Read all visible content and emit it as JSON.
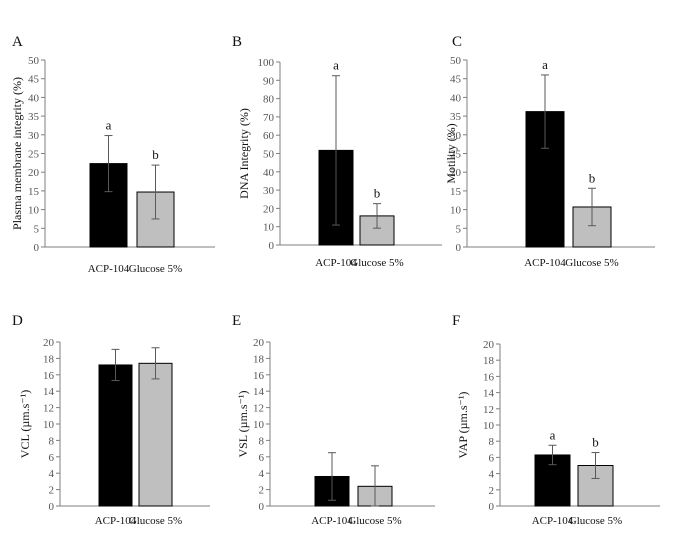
{
  "colors": {
    "acp": "#000000",
    "glucose": "#bfbfbf",
    "axis": "#7f7f7f",
    "error": "#595959"
  },
  "chart_data": [
    {
      "panel": "A",
      "type": "bar",
      "categories": [
        "ACP-104",
        "Glucose 5%"
      ],
      "values": [
        22.3,
        14.7
      ],
      "errors": [
        7.5,
        7.2
      ],
      "sig": [
        "a",
        "b"
      ],
      "ylabel": "Plasma membrane integrity (%)",
      "ylim": [
        0,
        50
      ],
      "ystep": 5,
      "yticks": [
        "0",
        "5",
        "10",
        "15",
        "20",
        "25",
        "30",
        "35",
        "40",
        "45",
        "50"
      ]
    },
    {
      "panel": "B",
      "type": "bar",
      "categories": [
        "ACP-104",
        "Glucose 5%"
      ],
      "values": [
        51.7,
        15.9
      ],
      "errors": [
        40.8,
        6.7
      ],
      "sig": [
        "a",
        "b"
      ],
      "ylabel": "DNA Integrity (%)",
      "ylim": [
        0,
        100
      ],
      "ystep": 10,
      "yticks": [
        "0",
        "10",
        "20",
        "30",
        "40",
        "50",
        "60",
        "70",
        "80",
        "90",
        "100"
      ]
    },
    {
      "panel": "C",
      "type": "bar",
      "categories": [
        "ACP-104",
        "Glucose 5%"
      ],
      "values": [
        36.2,
        10.7
      ],
      "errors": [
        9.8,
        5.0
      ],
      "sig": [
        "a",
        "b"
      ],
      "ylabel": "Motility (%)",
      "ylim": [
        0,
        50
      ],
      "ystep": 5,
      "yticks": [
        "0",
        "5",
        "10",
        "15",
        "20",
        "25",
        "30",
        "35",
        "40",
        "45",
        "50"
      ]
    },
    {
      "panel": "D",
      "type": "bar",
      "categories": [
        "ACP-104",
        "Glucose 5%"
      ],
      "values": [
        17.2,
        17.4
      ],
      "errors": [
        1.9,
        1.9
      ],
      "sig": [
        "",
        ""
      ],
      "ylabel": "VCL (µm.s⁻¹)",
      "ylim": [
        0,
        20
      ],
      "ystep": 2,
      "yticks": [
        "0",
        "2",
        "4",
        "6",
        "8",
        "10",
        "12",
        "14",
        "16",
        "18",
        "20"
      ]
    },
    {
      "panel": "E",
      "type": "bar",
      "categories": [
        "ACP-104",
        "Glucose 5%"
      ],
      "values": [
        3.6,
        2.4
      ],
      "errors": [
        2.9,
        2.5
      ],
      "sig": [
        "",
        ""
      ],
      "ylabel": "VSL (µm.s⁻¹)",
      "ylim": [
        0,
        20
      ],
      "ystep": 2,
      "yticks": [
        "0",
        "2",
        "4",
        "6",
        "8",
        "10",
        "12",
        "14",
        "16",
        "18",
        "20"
      ]
    },
    {
      "panel": "F",
      "type": "bar",
      "categories": [
        "ACP-104",
        "Glucose 5%"
      ],
      "values": [
        6.3,
        5.0
      ],
      "errors": [
        1.2,
        1.6
      ],
      "sig": [
        "a",
        "b"
      ],
      "ylabel": "VAP (µm.s⁻¹)",
      "ylim": [
        0,
        20
      ],
      "ystep": 2,
      "yticks": [
        "0",
        "2",
        "4",
        "6",
        "8",
        "10",
        "12",
        "14",
        "16",
        "18",
        "20"
      ]
    }
  ]
}
